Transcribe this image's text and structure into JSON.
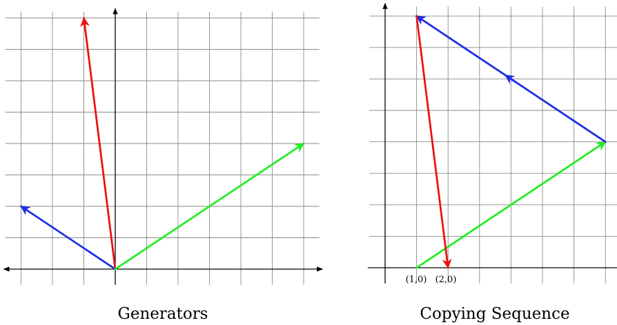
{
  "figure_left": {
    "caption": "Generators",
    "vectors": [
      {
        "name": "blue",
        "color": "#1f2ee0",
        "from": [
          0,
          0
        ],
        "to": [
          -3,
          2
        ]
      },
      {
        "name": "red",
        "color": "#ee1111",
        "from": [
          0,
          0
        ],
        "to": [
          -1,
          8
        ]
      },
      {
        "name": "green",
        "color": "#22ee22",
        "from": [
          0,
          0
        ],
        "to": [
          6,
          4
        ]
      }
    ]
  },
  "figure_right": {
    "caption": "Copying Sequence",
    "point_labels": [
      "(1,0)",
      "(2,0)"
    ],
    "path_segments": [
      {
        "name": "green",
        "color": "#22ee22",
        "from": [
          1,
          0
        ],
        "to": [
          7,
          4
        ],
        "arrow": "end"
      },
      {
        "name": "blue",
        "color": "#1f2ee0",
        "from": [
          7,
          4
        ],
        "to": [
          1,
          8
        ],
        "arrow": "mid-and-end"
      },
      {
        "name": "red",
        "color": "#ee1111",
        "from": [
          1,
          8
        ],
        "to": [
          2,
          0
        ],
        "arrow": "end"
      }
    ]
  }
}
